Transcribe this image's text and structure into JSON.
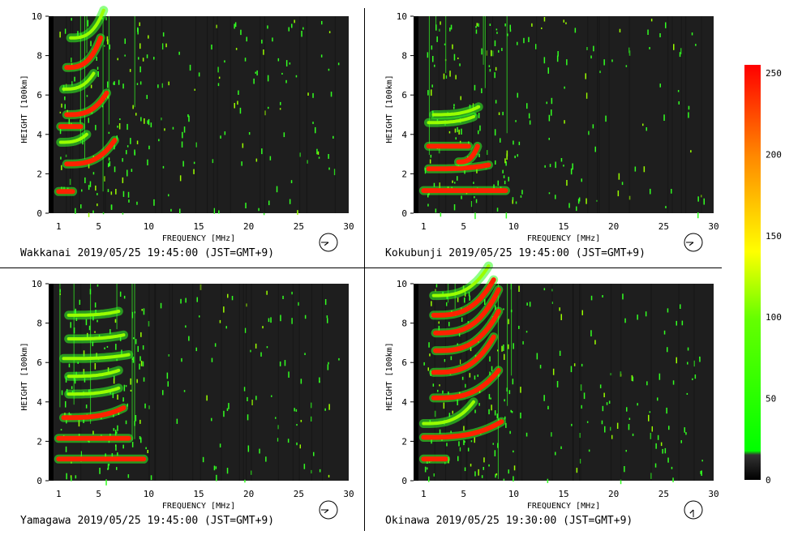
{
  "panels": [
    {
      "station": "Wakkanai",
      "caption": "Wakkanai 2019/05/25 19:45:00 (JST=GMT+9)",
      "clock": [
        7,
        45
      ]
    },
    {
      "station": "Kokubunji",
      "caption": "Kokubunji 2019/05/25 19:45:00 (JST=GMT+9)",
      "clock": [
        7,
        45
      ]
    },
    {
      "station": "Yamagawa",
      "caption": "Yamagawa 2019/05/25 19:45:00 (JST=GMT+9)",
      "clock": [
        7,
        45
      ]
    },
    {
      "station": "Okinawa",
      "caption": "Okinawa 2019/05/25 19:30:00 (JST=GMT+9)",
      "clock": [
        7,
        30
      ]
    }
  ],
  "colors": {
    "background": "#1e1e1e",
    "low": "#3a3a3a",
    "green": "#33ff22",
    "mid": "#99ff00",
    "red": "#ff2200",
    "accent_yellow": "#ffff00"
  },
  "chart_data": {
    "type": "heatmap",
    "xlabel": "FREQUENCY [MHz]",
    "ylabel": "HEIGHT [100km]",
    "xlim": [
      0,
      30
    ],
    "ylim": [
      0,
      10
    ],
    "xticks": [
      "1",
      "5",
      "10",
      "15",
      "20",
      "25",
      "30"
    ],
    "xtick_values": [
      1,
      5,
      10,
      15,
      20,
      25,
      30
    ],
    "yticks": [
      "0",
      "2",
      "4",
      "6",
      "8",
      "10"
    ],
    "ytick_values": [
      0,
      2,
      4,
      6,
      8,
      10
    ],
    "colorbar": {
      "min": 0,
      "max": 255,
      "ticks": [
        "0",
        "50",
        "100",
        "150",
        "200",
        "250"
      ],
      "tick_values": [
        0,
        50,
        100,
        150,
        200,
        250
      ]
    },
    "traces": [
      [
        {
          "f0": 1.0,
          "f1": 2.4,
          "h": 1.1,
          "curve": 0,
          "level": "red"
        },
        {
          "f0": 1.8,
          "f1": 6.6,
          "h": 2.5,
          "curve": 1.2,
          "level": "red"
        },
        {
          "f0": 1.2,
          "f1": 3.2,
          "h": 4.4,
          "curve": 0,
          "level": "red"
        },
        {
          "f0": 1.8,
          "f1": 5.8,
          "h": 5.0,
          "curve": 1.1,
          "level": "red"
        },
        {
          "f0": 1.8,
          "f1": 5.2,
          "h": 7.4,
          "curve": 1.5,
          "level": "red"
        },
        {
          "f0": 2.2,
          "f1": 5.5,
          "h": 8.9,
          "curve": 1.4,
          "level": "green"
        },
        {
          "f0": 1.2,
          "f1": 3.8,
          "h": 3.6,
          "curve": 0.4,
          "level": "green"
        },
        {
          "f0": 1.5,
          "f1": 4.5,
          "h": 6.3,
          "curve": 0.8,
          "level": "green"
        }
      ],
      [
        {
          "f0": 1.0,
          "f1": 9.2,
          "h": 1.15,
          "curve": 0,
          "level": "red"
        },
        {
          "f0": 1.5,
          "f1": 7.5,
          "h": 2.25,
          "curve": 0.2,
          "level": "red"
        },
        {
          "f0": 4.5,
          "f1": 6.4,
          "h": 2.6,
          "curve": 0.8,
          "level": "red"
        },
        {
          "f0": 1.5,
          "f1": 5.5,
          "h": 3.4,
          "curve": 0,
          "level": "red"
        },
        {
          "f0": 1.5,
          "f1": 6.0,
          "h": 4.6,
          "curve": 0.3,
          "level": "green"
        },
        {
          "f0": 2.0,
          "f1": 6.5,
          "h": 5.0,
          "curve": 0.4,
          "level": "green"
        }
      ],
      [
        {
          "f0": 1.0,
          "f1": 9.5,
          "h": 1.1,
          "curve": 0,
          "level": "red"
        },
        {
          "f0": 1.0,
          "f1": 8.0,
          "h": 2.15,
          "curve": 0,
          "level": "red"
        },
        {
          "f0": 1.5,
          "f1": 7.5,
          "h": 3.2,
          "curve": 0.5,
          "level": "red"
        },
        {
          "f0": 2.0,
          "f1": 7.0,
          "h": 4.4,
          "curve": 0.3,
          "level": "green"
        },
        {
          "f0": 2.0,
          "f1": 7.0,
          "h": 5.3,
          "curve": 0.3,
          "level": "green"
        },
        {
          "f0": 1.5,
          "f1": 8.0,
          "h": 6.2,
          "curve": 0.2,
          "level": "green"
        },
        {
          "f0": 2.0,
          "f1": 7.5,
          "h": 7.2,
          "curve": 0.2,
          "level": "green"
        },
        {
          "f0": 2.0,
          "f1": 7.0,
          "h": 8.4,
          "curve": 0.2,
          "level": "green"
        }
      ],
      [
        {
          "f0": 1.0,
          "f1": 3.2,
          "h": 1.1,
          "curve": 0,
          "level": "red"
        },
        {
          "f0": 1.0,
          "f1": 8.8,
          "h": 2.2,
          "curve": 0.8,
          "level": "red"
        },
        {
          "f0": 1.0,
          "f1": 6.0,
          "h": 2.9,
          "curve": 1.1,
          "level": "green"
        },
        {
          "f0": 2.0,
          "f1": 8.5,
          "h": 4.2,
          "curve": 1.4,
          "level": "red"
        },
        {
          "f0": 2.0,
          "f1": 8.0,
          "h": 5.5,
          "curve": 1.8,
          "level": "red"
        },
        {
          "f0": 2.2,
          "f1": 8.5,
          "h": 6.6,
          "curve": 2.0,
          "level": "red"
        },
        {
          "f0": 2.2,
          "f1": 8.5,
          "h": 7.5,
          "curve": 2.2,
          "level": "red"
        },
        {
          "f0": 2.0,
          "f1": 8.0,
          "h": 8.4,
          "curve": 1.8,
          "level": "red"
        },
        {
          "f0": 2.0,
          "f1": 7.5,
          "h": 9.4,
          "curve": 1.5,
          "level": "green"
        }
      ]
    ]
  }
}
